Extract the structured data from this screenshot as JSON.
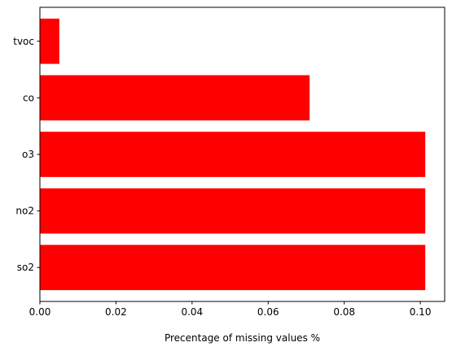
{
  "chart_data": {
    "type": "bar",
    "orientation": "horizontal",
    "categories": [
      "so2",
      "no2",
      "o3",
      "co",
      "tvoc"
    ],
    "values": [
      0.1013,
      0.1013,
      0.1013,
      0.0709,
      0.0051
    ],
    "xlabel": "Precentage of missing values %",
    "xlim": [
      0,
      0.1064
    ],
    "xticks": [
      0.0,
      0.02,
      0.04,
      0.06,
      0.08,
      0.1
    ],
    "xtick_labels": [
      "0.00",
      "0.02",
      "0.04",
      "0.06",
      "0.08",
      "0.10"
    ],
    "grid": false,
    "bar_color": "#ff0000"
  }
}
